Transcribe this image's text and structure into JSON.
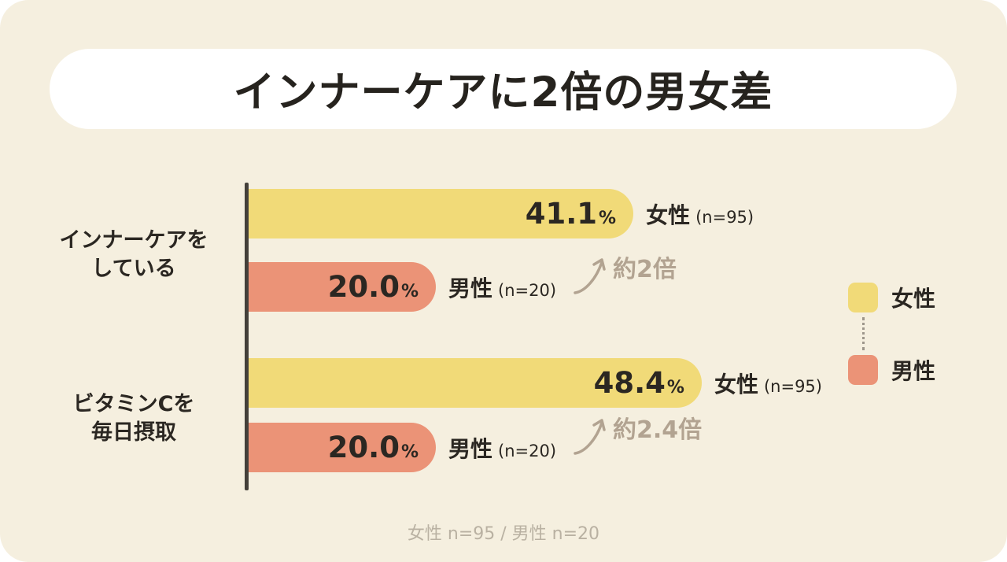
{
  "title": "インナーケアに2倍の男女差",
  "colors": {
    "background": "#f5efdf",
    "banner": "#ffffff",
    "female_bar": "#f1da78",
    "male_bar": "#eb9377",
    "text": "#2b2722",
    "annotation": "#b2a391",
    "axis": "#44403a",
    "footer_text": "#b9b1a2"
  },
  "labels": {
    "percent_sign": "%"
  },
  "rows": [
    {
      "category_line1": "インナーケアを",
      "category_line2": "している",
      "female_value": "41.1",
      "female_label": "女性",
      "female_n": "(n=95)",
      "male_value": "20.0",
      "male_label": "男性",
      "male_n": "(n=20)",
      "annotation": "約2倍"
    },
    {
      "category_line1": "ビタミンCを",
      "category_line2": "毎日摂取",
      "female_value": "48.4",
      "female_label": "女性",
      "female_n": "(n=95)",
      "male_value": "20.0",
      "male_label": "男性",
      "male_n": "(n=20)",
      "annotation": "約2.4倍"
    }
  ],
  "legend": {
    "female": "女性",
    "male": "男性"
  },
  "footer": {
    "note": "女性 n=95 / 男性 n=20"
  },
  "chart_data": {
    "type": "bar",
    "orientation": "horizontal",
    "title": "インナーケアに2倍の男女差",
    "categories": [
      "インナーケアをしている",
      "ビタミンCを毎日摂取"
    ],
    "series": [
      {
        "name": "女性 (n=95)",
        "values": [
          41.1,
          48.4
        ],
        "color": "#f1da78"
      },
      {
        "name": "男性 (n=20)",
        "values": [
          20.0,
          20.0
        ],
        "color": "#eb9377"
      }
    ],
    "annotations": [
      "約2倍",
      "約2.4倍"
    ],
    "value_unit": "%",
    "xlim": [
      0,
      100
    ],
    "grid": false,
    "legend_position": "right",
    "footnote": "女性 n=95 / 男性 n=20"
  }
}
